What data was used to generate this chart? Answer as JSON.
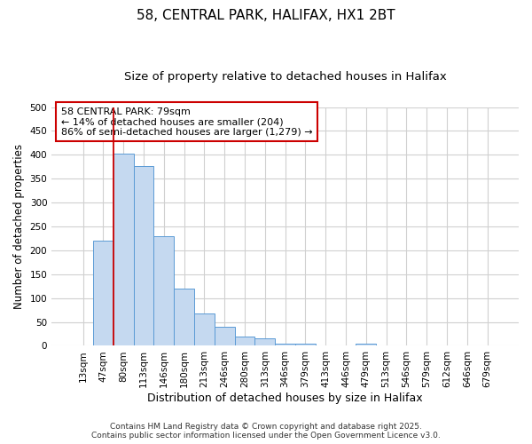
{
  "title": "58, CENTRAL PARK, HALIFAX, HX1 2BT",
  "subtitle": "Size of property relative to detached houses in Halifax",
  "xlabel": "Distribution of detached houses by size in Halifax",
  "ylabel": "Number of detached properties",
  "categories": [
    "13sqm",
    "47sqm",
    "80sqm",
    "113sqm",
    "146sqm",
    "180sqm",
    "213sqm",
    "246sqm",
    "280sqm",
    "313sqm",
    "346sqm",
    "379sqm",
    "413sqm",
    "446sqm",
    "479sqm",
    "513sqm",
    "546sqm",
    "579sqm",
    "612sqm",
    "646sqm",
    "679sqm"
  ],
  "values": [
    0,
    220,
    403,
    376,
    230,
    119,
    68,
    39,
    20,
    15,
    5,
    5,
    0,
    0,
    5,
    0,
    0,
    0,
    0,
    0,
    0
  ],
  "bar_color": "#c5d9f0",
  "bar_edge_color": "#5b9bd5",
  "vline_index": 2,
  "vline_color": "#cc0000",
  "annotation_text": "58 CENTRAL PARK: 79sqm\n← 14% of detached houses are smaller (204)\n86% of semi-detached houses are larger (1,279) →",
  "annotation_box_color": "#ffffff",
  "annotation_box_edge_color": "#cc0000",
  "ylim": [
    0,
    500
  ],
  "yticks": [
    0,
    50,
    100,
    150,
    200,
    250,
    300,
    350,
    400,
    450,
    500
  ],
  "grid_color": "#d0d0d0",
  "bg_color": "#ffffff",
  "footer_line1": "Contains HM Land Registry data © Crown copyright and database right 2025.",
  "footer_line2": "Contains public sector information licensed under the Open Government Licence v3.0.",
  "title_fontsize": 11,
  "subtitle_fontsize": 9.5,
  "xlabel_fontsize": 9,
  "ylabel_fontsize": 8.5,
  "tick_fontsize": 7.5,
  "annotation_fontsize": 8,
  "footer_fontsize": 6.5
}
